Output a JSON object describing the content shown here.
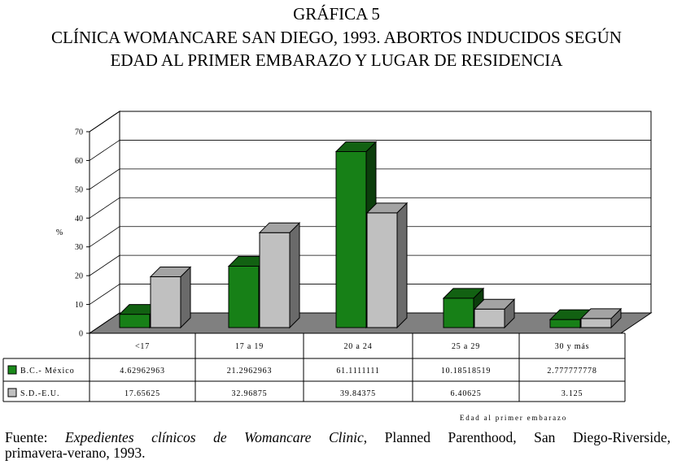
{
  "title": {
    "line1": "GRÁFICA 5",
    "line2": "CLÍNICA WOMANCARE SAN DIEGO,  1993. ABORTOS INDUCIDOS SEGÚN",
    "line3": "EDAD AL PRIMER EMBARAZO Y LUGAR DE RESIDENCIA"
  },
  "chart_data": {
    "type": "bar",
    "subtype": "3d-clustered",
    "categories": [
      "<17",
      "17 a 19",
      "20 a 24",
      "25 a 29",
      "30 y más"
    ],
    "series": [
      {
        "name": "B.C.- México",
        "color": "#1a8a1a",
        "values": [
          4.62962963,
          21.2962963,
          61.11111111,
          10.18518519,
          2.777777778
        ],
        "labels": [
          "4.62962963",
          "21.2962963",
          "61.1111111",
          "10.18518519",
          "2.777777778"
        ]
      },
      {
        "name": "S.D.-E.U.",
        "color": "#c0c0c0",
        "values": [
          17.65625,
          32.96875,
          39.84375,
          6.40625,
          3.125
        ],
        "labels": [
          "17.65625",
          "32.96875",
          "39.84375",
          "6.40625",
          "3.125"
        ]
      }
    ],
    "ylabel": "%",
    "xlabel": "Edad al primer embarazo",
    "ylim": [
      0,
      70
    ],
    "yticks": [
      0,
      10,
      20,
      30,
      40,
      50,
      60,
      70
    ],
    "grid": true,
    "legend": "data-table"
  },
  "source": {
    "prefix": "Fuente: ",
    "italic": "Expedientes clínicos de Womancare Clinic",
    "rest": ", Planned Parenthood, San Diego-Riverside,",
    "line2": "primavera-verano, 1993."
  }
}
